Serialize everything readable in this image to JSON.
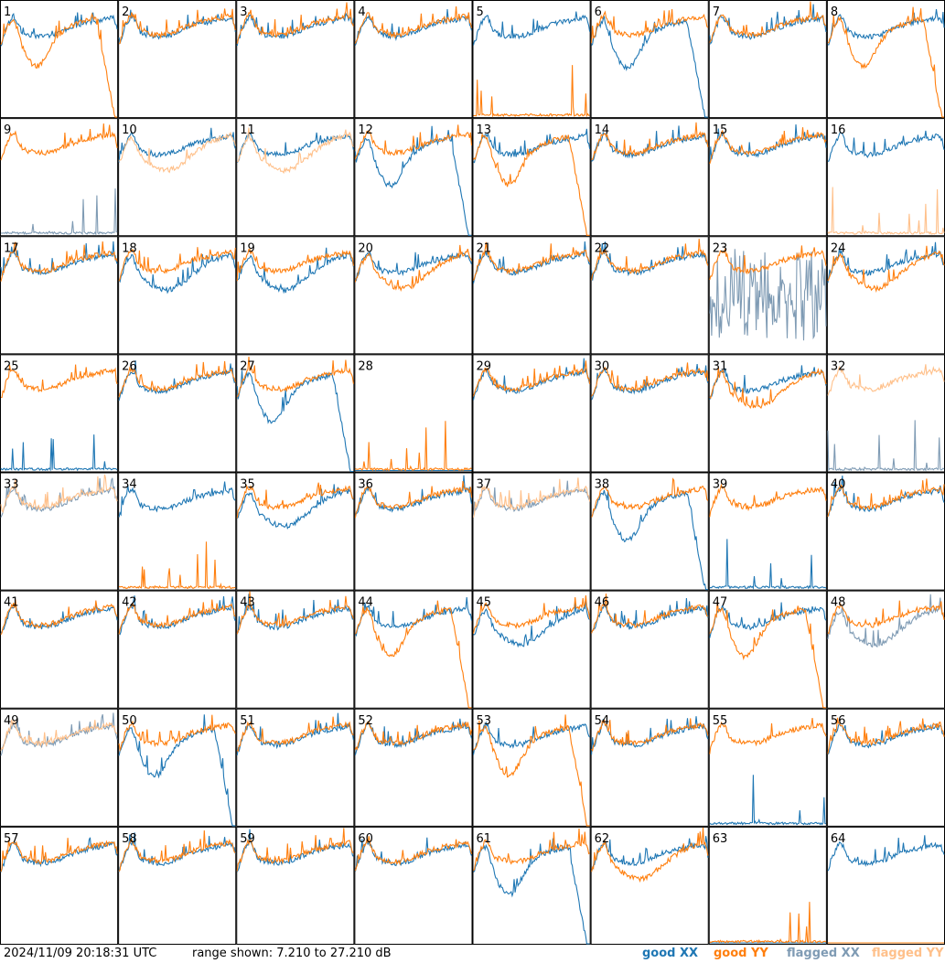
{
  "footer": {
    "timestamp": "2024/11/09 20:18:31 UTC",
    "range": "range shown: 7.210 to 27.210 dB"
  },
  "legend": [
    {
      "label": "good XX",
      "color": "#1f77b4"
    },
    {
      "label": "good YY",
      "color": "#ff7f0e"
    },
    {
      "label": "flagged XX",
      "color": "#7f9bb4"
    },
    {
      "label": "flagged YY",
      "color": "#ffc08a"
    }
  ],
  "chart_data": {
    "type": "line",
    "layout": "8x8 grid of per-tile spectra",
    "y_unit": "dB",
    "ylim": [
      7.21,
      27.21
    ],
    "grid": false,
    "legend_position": "bottom-right",
    "series_types": [
      "good XX",
      "good YY",
      "flagged XX",
      "flagged YY"
    ],
    "panels": [
      {
        "n": 1,
        "xx": "normal",
        "yy": "rolloff",
        "flag": "none"
      },
      {
        "n": 2,
        "xx": "normal",
        "yy": "normal",
        "flag": "none"
      },
      {
        "n": 3,
        "xx": "normal",
        "yy": "normal",
        "flag": "none"
      },
      {
        "n": 4,
        "xx": "normal",
        "yy": "normal",
        "flag": "none"
      },
      {
        "n": 5,
        "xx": "normal",
        "yy": "spikes",
        "flag": "none"
      },
      {
        "n": 6,
        "xx": "rolloff",
        "yy": "normal",
        "flag": "none"
      },
      {
        "n": 7,
        "xx": "normal",
        "yy": "normal",
        "flag": "none"
      },
      {
        "n": 8,
        "xx": "normal",
        "yy": "rolloff",
        "flag": "none"
      },
      {
        "n": 9,
        "xx": "spikes",
        "yy": "normal",
        "flag": "xx"
      },
      {
        "n": 10,
        "xx": "normal",
        "yy": "low",
        "flag": "yy"
      },
      {
        "n": 11,
        "xx": "normal",
        "yy": "low",
        "flag": "yy"
      },
      {
        "n": 12,
        "xx": "rolloff",
        "yy": "normal",
        "flag": "none"
      },
      {
        "n": 13,
        "xx": "normal",
        "yy": "rolloff",
        "flag": "none"
      },
      {
        "n": 14,
        "xx": "normal",
        "yy": "normal",
        "flag": "none"
      },
      {
        "n": 15,
        "xx": "normal",
        "yy": "normal",
        "flag": "none"
      },
      {
        "n": 16,
        "xx": "normal",
        "yy": "spikes",
        "flag": "yy"
      },
      {
        "n": 17,
        "xx": "normal",
        "yy": "normal",
        "flag": "none"
      },
      {
        "n": 18,
        "xx": "low",
        "yy": "normal",
        "flag": "none"
      },
      {
        "n": 19,
        "xx": "low",
        "yy": "normal",
        "flag": "none"
      },
      {
        "n": 20,
        "xx": "normal",
        "yy": "low",
        "flag": "none"
      },
      {
        "n": 21,
        "xx": "normal",
        "yy": "normal",
        "flag": "none"
      },
      {
        "n": 22,
        "xx": "normal",
        "yy": "normal",
        "flag": "none"
      },
      {
        "n": 23,
        "xx": "noise",
        "yy": "normal",
        "flag": "xx"
      },
      {
        "n": 24,
        "xx": "normal",
        "yy": "low",
        "flag": "none"
      },
      {
        "n": 25,
        "xx": "spikes",
        "yy": "normal",
        "flag": "none"
      },
      {
        "n": 26,
        "xx": "normal",
        "yy": "normal",
        "flag": "none"
      },
      {
        "n": 27,
        "xx": "rolloff",
        "yy": "normal",
        "flag": "none"
      },
      {
        "n": 28,
        "xx": "dead",
        "yy": "spikes",
        "flag": "none"
      },
      {
        "n": 29,
        "xx": "normal",
        "yy": "normal",
        "flag": "none"
      },
      {
        "n": 30,
        "xx": "normal",
        "yy": "normal",
        "flag": "none"
      },
      {
        "n": 31,
        "xx": "normal",
        "yy": "low",
        "flag": "none"
      },
      {
        "n": 32,
        "xx": "spikes",
        "yy": "normal",
        "flag": "both"
      },
      {
        "n": 33,
        "xx": "normal",
        "yy": "normal",
        "flag": "both"
      },
      {
        "n": 34,
        "xx": "normal",
        "yy": "spikes",
        "flag": "none"
      },
      {
        "n": 35,
        "xx": "low",
        "yy": "normal",
        "flag": "none"
      },
      {
        "n": 36,
        "xx": "normal",
        "yy": "normal",
        "flag": "none"
      },
      {
        "n": 37,
        "xx": "normal",
        "yy": "normal",
        "flag": "both"
      },
      {
        "n": 38,
        "xx": "rolloff",
        "yy": "normal",
        "flag": "none"
      },
      {
        "n": 39,
        "xx": "spikes",
        "yy": "normal",
        "flag": "none"
      },
      {
        "n": 40,
        "xx": "normal",
        "yy": "normal",
        "flag": "none"
      },
      {
        "n": 41,
        "xx": "normal",
        "yy": "normal",
        "flag": "none"
      },
      {
        "n": 42,
        "xx": "normal",
        "yy": "normal",
        "flag": "none"
      },
      {
        "n": 43,
        "xx": "normal",
        "yy": "normal",
        "flag": "none"
      },
      {
        "n": 44,
        "xx": "normal",
        "yy": "rolloff",
        "flag": "none"
      },
      {
        "n": 45,
        "xx": "low",
        "yy": "normal",
        "flag": "none"
      },
      {
        "n": 46,
        "xx": "normal",
        "yy": "normal",
        "flag": "none"
      },
      {
        "n": 47,
        "xx": "normal",
        "yy": "rolloff",
        "flag": "none"
      },
      {
        "n": 48,
        "xx": "low",
        "yy": "normal",
        "flag": "xx"
      },
      {
        "n": 49,
        "xx": "normal",
        "yy": "normal",
        "flag": "both"
      },
      {
        "n": 50,
        "xx": "rolloff",
        "yy": "normal",
        "flag": "none"
      },
      {
        "n": 51,
        "xx": "normal",
        "yy": "normal",
        "flag": "none"
      },
      {
        "n": 52,
        "xx": "normal",
        "yy": "normal",
        "flag": "none"
      },
      {
        "n": 53,
        "xx": "normal",
        "yy": "rolloff",
        "flag": "none"
      },
      {
        "n": 54,
        "xx": "normal",
        "yy": "normal",
        "flag": "none"
      },
      {
        "n": 55,
        "xx": "spikes",
        "yy": "normal",
        "flag": "none"
      },
      {
        "n": 56,
        "xx": "normal",
        "yy": "normal",
        "flag": "none"
      },
      {
        "n": 57,
        "xx": "normal",
        "yy": "normal",
        "flag": "none"
      },
      {
        "n": 58,
        "xx": "normal",
        "yy": "normal",
        "flag": "none"
      },
      {
        "n": 59,
        "xx": "normal",
        "yy": "normal",
        "flag": "none"
      },
      {
        "n": 60,
        "xx": "normal",
        "yy": "normal",
        "flag": "none"
      },
      {
        "n": 61,
        "xx": "rolloff",
        "yy": "normal",
        "flag": "none"
      },
      {
        "n": 62,
        "xx": "normal",
        "yy": "low",
        "flag": "none"
      },
      {
        "n": 63,
        "xx": "dead",
        "yy": "spikes",
        "flag": "none"
      },
      {
        "n": 64,
        "xx": "normal",
        "yy": "dead",
        "flag": "none"
      }
    ]
  }
}
